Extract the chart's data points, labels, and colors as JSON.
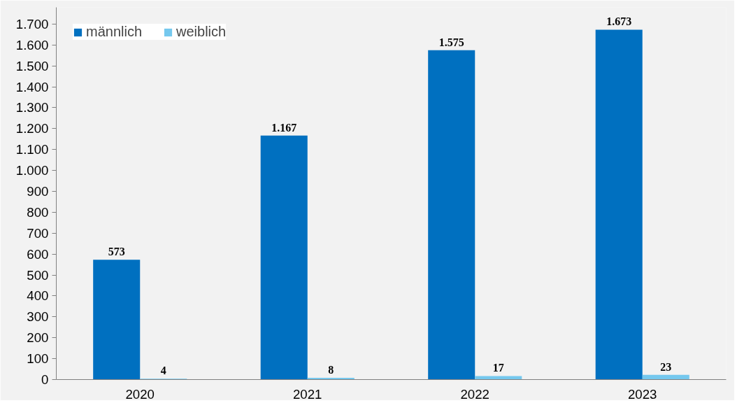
{
  "chart_data": {
    "type": "bar",
    "categories": [
      "2020",
      "2021",
      "2022",
      "2023"
    ],
    "series": [
      {
        "name": "männlich",
        "color": "#0070c0",
        "values": [
          573,
          1167,
          1575,
          1673
        ],
        "value_labels": [
          "573",
          "1.167",
          "1.575",
          "1.673"
        ]
      },
      {
        "name": "weiblich",
        "color": "#75c8ee",
        "values": [
          4,
          8,
          17,
          23
        ],
        "value_labels": [
          "4",
          "8",
          "17",
          "23"
        ]
      }
    ],
    "ylim": [
      0,
      1780
    ],
    "yticks": [
      0,
      100,
      200,
      300,
      400,
      500,
      600,
      700,
      800,
      900,
      {
        "value": 1000,
        "label": "1.000"
      },
      {
        "value": 1100,
        "label": "1.100"
      },
      {
        "value": 1200,
        "label": "1.200"
      },
      {
        "value": 1300,
        "label": "1.300"
      },
      {
        "value": 1400,
        "label": "1.400"
      },
      {
        "value": 1500,
        "label": "1.500"
      },
      {
        "value": 1600,
        "label": "1.600"
      },
      {
        "value": 1700,
        "label": "1.700"
      }
    ],
    "grid": false,
    "legend": "top left"
  }
}
